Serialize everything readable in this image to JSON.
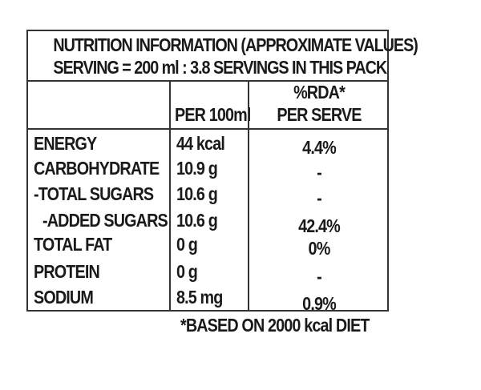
{
  "title": {
    "line1": "NUTRITION INFORMATION (APPROXIMATE VALUES)",
    "line2": "SERVING = 200 ml : 3.8 SERVINGS IN THIS PACK"
  },
  "columns": {
    "per100": "PER 100ml",
    "rda_line1": "%RDA*",
    "rda_line2": "PER SERVE"
  },
  "rows": [
    {
      "nutrient": "ENERGY",
      "per100": "44 kcal",
      "rda": "4.4%"
    },
    {
      "nutrient": "CARBOHYDRATE",
      "per100": "10.9 g",
      "rda": "-"
    },
    {
      "nutrient": "-TOTAL SUGARS",
      "per100": "10.6 g",
      "rda": "-"
    },
    {
      "nutrient": "-ADDED SUGARS",
      "per100": "10.6 g",
      "rda": "42.4%"
    },
    {
      "nutrient": "TOTAL FAT",
      "per100": "0 g",
      "rda": "0%"
    },
    {
      "nutrient": "PROTEIN",
      "per100": "0 g",
      "rda": "-"
    },
    {
      "nutrient": "SODIUM",
      "per100": "8.5 mg",
      "rda": "0.9%"
    }
  ],
  "footnote": "*BASED ON 2000 kcal DIET"
}
